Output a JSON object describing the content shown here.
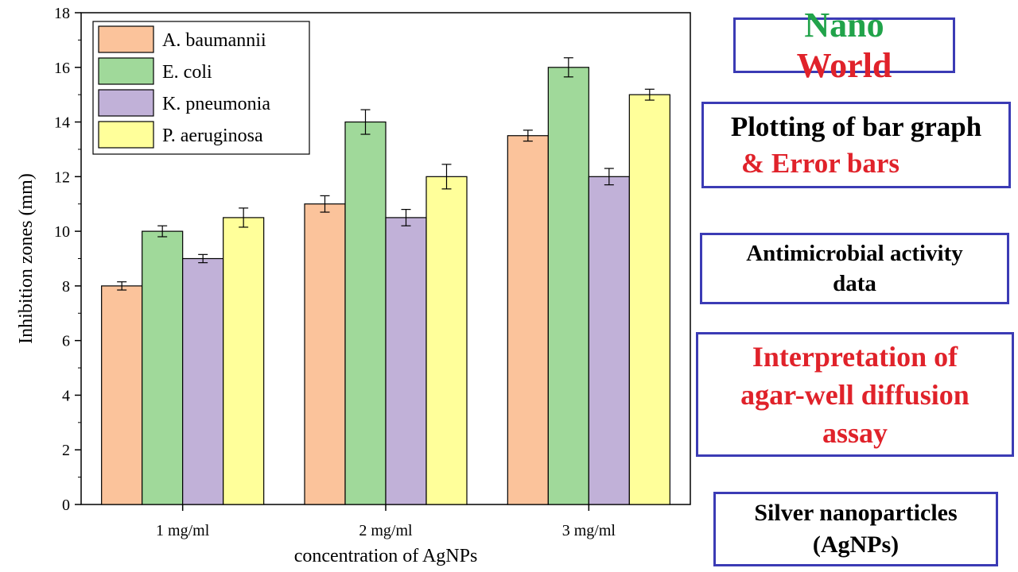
{
  "chart_data": {
    "type": "bar",
    "xlabel": "concentration of AgNPs",
    "ylabel": "Inhibition zones (mm)",
    "ylim": [
      0,
      18
    ],
    "yticks": [
      0,
      2,
      4,
      6,
      8,
      10,
      12,
      14,
      16,
      18
    ],
    "categories": [
      "1 mg/ml",
      "2 mg/ml",
      "3 mg/ml"
    ],
    "legend_position": "top-left",
    "series": [
      {
        "name": "A. baumannii",
        "color": "#fbc39b",
        "values": [
          8,
          11,
          13.5
        ],
        "errors": [
          0.15,
          0.3,
          0.2
        ]
      },
      {
        "name": "E. coli",
        "color": "#a0d99a",
        "values": [
          10,
          14,
          16
        ],
        "errors": [
          0.2,
          0.45,
          0.35
        ]
      },
      {
        "name": "K. pneumonia",
        "color": "#c1b1d8",
        "values": [
          9,
          10.5,
          12
        ],
        "errors": [
          0.15,
          0.3,
          0.3
        ]
      },
      {
        "name": "P. aeruginosa",
        "color": "#ffff9a",
        "values": [
          10.5,
          12,
          15
        ],
        "errors": [
          0.35,
          0.45,
          0.2
        ]
      }
    ]
  },
  "side_panels": {
    "brand": {
      "part1": "Nano",
      "part2": "World"
    },
    "plotting": {
      "line1": "Plotting of bar graph",
      "line2": "& Error bars"
    },
    "antimicrobial": {
      "line1": "Antimicrobial activity",
      "line2": "data"
    },
    "interpretation": {
      "line1": "Interpretation of",
      "line2": "agar-well diffusion",
      "line3": "assay"
    },
    "silver": {
      "line1": "Silver nanoparticles",
      "line2": "(AgNPs)"
    }
  }
}
